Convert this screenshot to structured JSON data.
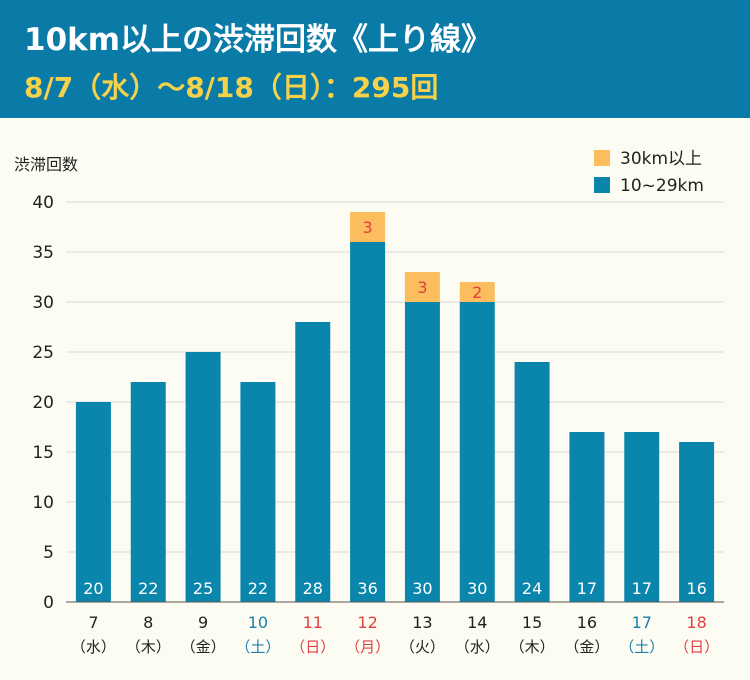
{
  "chart_data": {
    "type": "bar",
    "stacked": true,
    "title": "10km以上の渋滞回数《上り線》",
    "subtitle": "8/7（水）～8/18（日）：295回",
    "ylabel": "渋滞回数",
    "ylim": [
      0,
      40
    ],
    "yticks": [
      0,
      5,
      10,
      15,
      20,
      25,
      30,
      35,
      40
    ],
    "grid": true,
    "legend_position": "top-right",
    "categories": [
      {
        "day": "7",
        "weekday": "（水）",
        "color": "#222222"
      },
      {
        "day": "8",
        "weekday": "（木）",
        "color": "#222222"
      },
      {
        "day": "9",
        "weekday": "（金）",
        "color": "#222222"
      },
      {
        "day": "10",
        "weekday": "（土）",
        "color": "#1a7fb0"
      },
      {
        "day": "11",
        "weekday": "（日）",
        "color": "#e04040"
      },
      {
        "day": "12",
        "weekday": "（月）",
        "color": "#e04040"
      },
      {
        "day": "13",
        "weekday": "（火）",
        "color": "#222222"
      },
      {
        "day": "14",
        "weekday": "（水）",
        "color": "#222222"
      },
      {
        "day": "15",
        "weekday": "（木）",
        "color": "#222222"
      },
      {
        "day": "16",
        "weekday": "（金）",
        "color": "#222222"
      },
      {
        "day": "17",
        "weekday": "（土）",
        "color": "#1a7fb0"
      },
      {
        "day": "18",
        "weekday": "（日）",
        "color": "#e04040"
      }
    ],
    "series": [
      {
        "name": "10~29km",
        "color": "#0a86ad",
        "label_color": "#ffffff",
        "values": [
          20,
          22,
          25,
          22,
          28,
          36,
          30,
          30,
          24,
          17,
          17,
          16
        ]
      },
      {
        "name": "30km以上",
        "color": "#fbbd5e",
        "label_color": "#e04040",
        "values": [
          0,
          0,
          0,
          0,
          0,
          3,
          3,
          2,
          0,
          0,
          0,
          0
        ]
      }
    ],
    "legend_order": [
      1,
      0
    ]
  }
}
